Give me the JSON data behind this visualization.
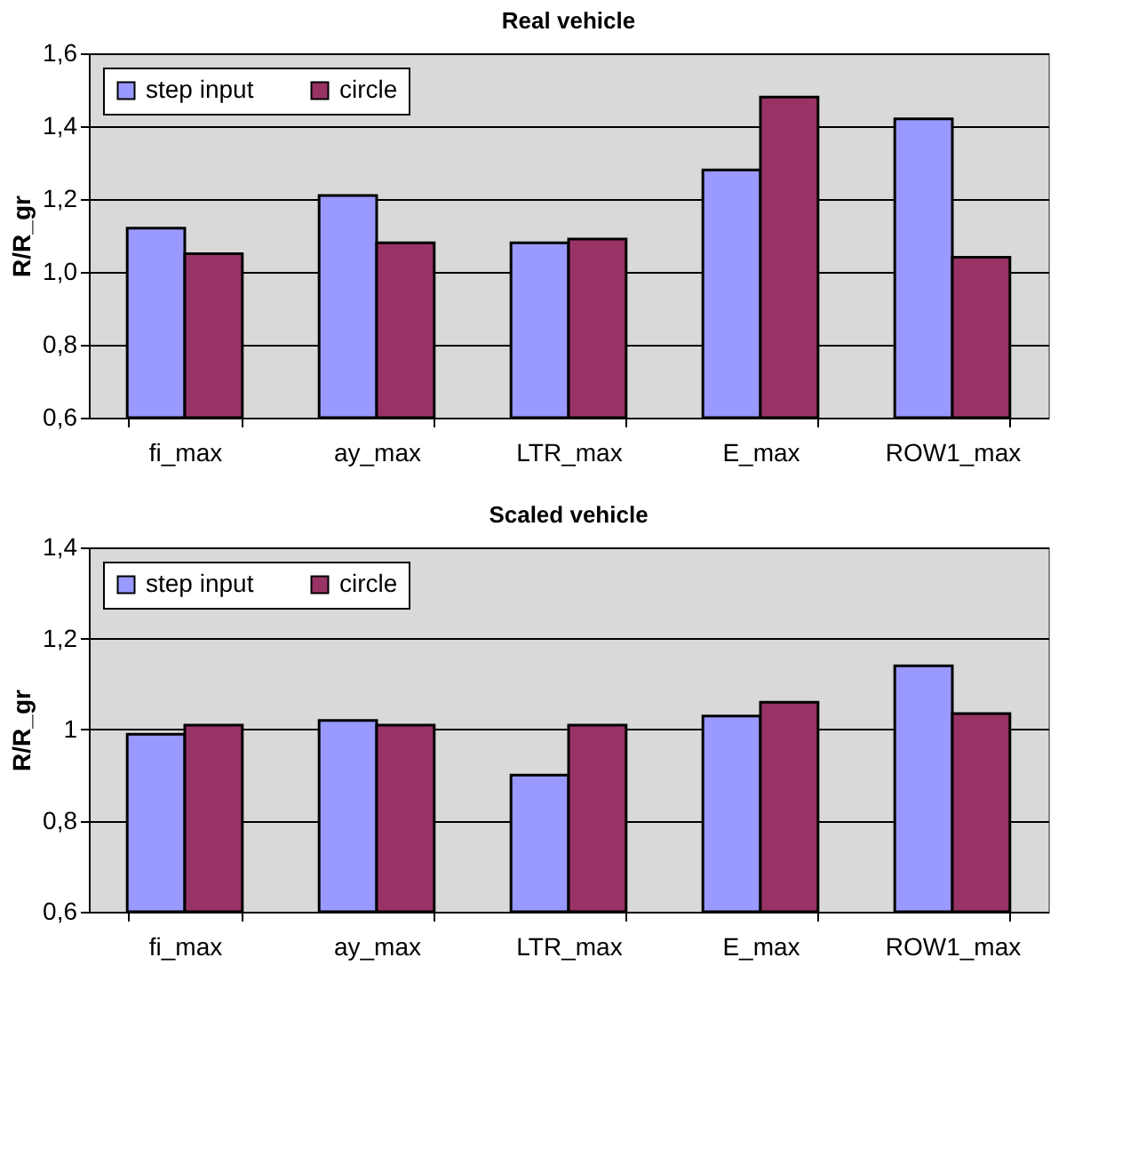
{
  "chart_data": [
    {
      "type": "bar",
      "title": "Real vehicle",
      "ylabel": "R/R_gr",
      "categories": [
        "fi_max",
        "ay_max",
        "LTR_max",
        "E_max",
        "ROW1_max"
      ],
      "series": [
        {
          "name": "step input",
          "color": "#9999ff",
          "values": [
            1.12,
            1.21,
            1.08,
            1.28,
            1.42
          ]
        },
        {
          "name": "circle",
          "color": "#993366",
          "values": [
            1.05,
            1.08,
            1.09,
            1.48,
            1.04
          ]
        }
      ],
      "ylim": [
        0.6,
        1.6
      ],
      "yticks": [
        {
          "value": 0.6,
          "label": "0,6"
        },
        {
          "value": 0.8,
          "label": "0,8"
        },
        {
          "value": 1.0,
          "label": "1,0"
        },
        {
          "value": 1.2,
          "label": "1,2"
        },
        {
          "value": 1.4,
          "label": "1,4"
        },
        {
          "value": 1.6,
          "label": "1,6"
        }
      ],
      "grid": "y",
      "legend": "top left"
    },
    {
      "type": "bar",
      "title": "Scaled vehicle",
      "ylabel": "R/R_gr",
      "categories": [
        "fi_max",
        "ay_max",
        "LTR_max",
        "E_max",
        "ROW1_max"
      ],
      "series": [
        {
          "name": "step input",
          "color": "#9999ff",
          "values": [
            0.99,
            1.02,
            0.9,
            1.03,
            1.14
          ]
        },
        {
          "name": "circle",
          "color": "#993366",
          "values": [
            1.01,
            1.01,
            1.01,
            1.06,
            1.035
          ]
        }
      ],
      "ylim": [
        0.6,
        1.4
      ],
      "yticks": [
        {
          "value": 0.6,
          "label": "0,6"
        },
        {
          "value": 0.8,
          "label": "0,8"
        },
        1,
        {
          "value": 1.2,
          "label": "1,2"
        },
        {
          "value": 1.4,
          "label": "1,4"
        }
      ],
      "grid": "y",
      "legend": "top left"
    }
  ]
}
